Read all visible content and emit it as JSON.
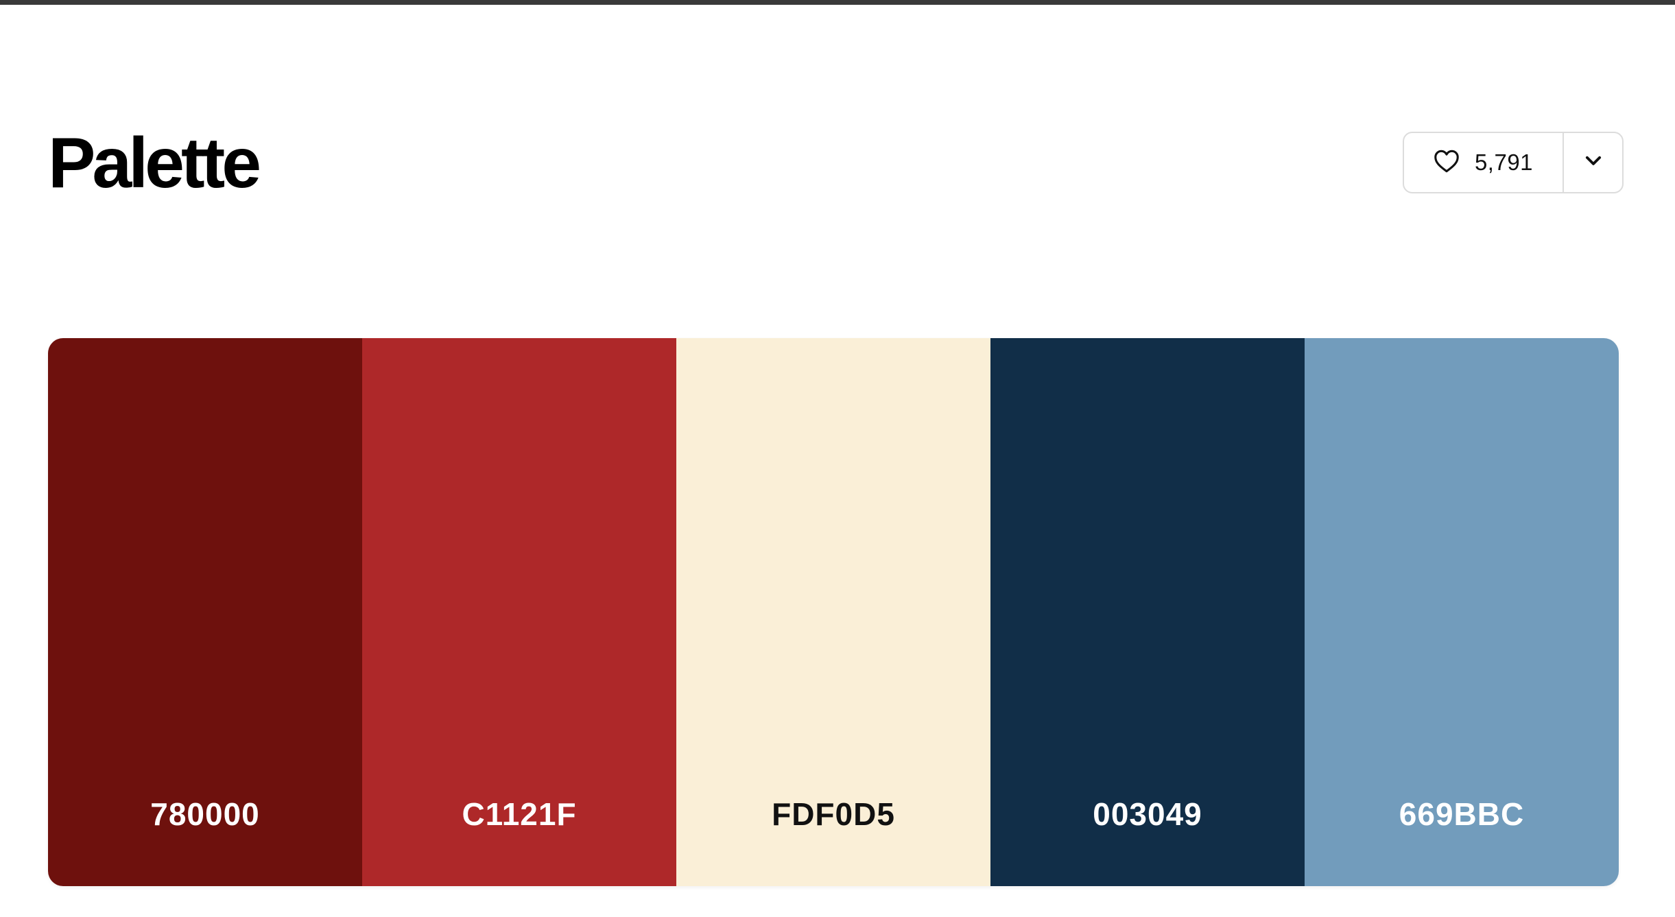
{
  "header": {
    "title": "Palette"
  },
  "actions": {
    "like_count": "5,791",
    "like_icon": "heart-icon",
    "more_icon": "chevron-down-icon"
  },
  "palette": {
    "swatches": [
      {
        "hex": "780000",
        "bg": "#6e110d",
        "text_color": "#ffffff"
      },
      {
        "hex": "C1121F",
        "bg": "#ae2829",
        "text_color": "#ffffff"
      },
      {
        "hex": "FDF0D5",
        "bg": "#faefd7",
        "text_color": "#111111"
      },
      {
        "hex": "003049",
        "bg": "#112e48",
        "text_color": "#ffffff"
      },
      {
        "hex": "669BBC",
        "bg": "#729cbc",
        "text_color": "#ffffff"
      }
    ]
  }
}
